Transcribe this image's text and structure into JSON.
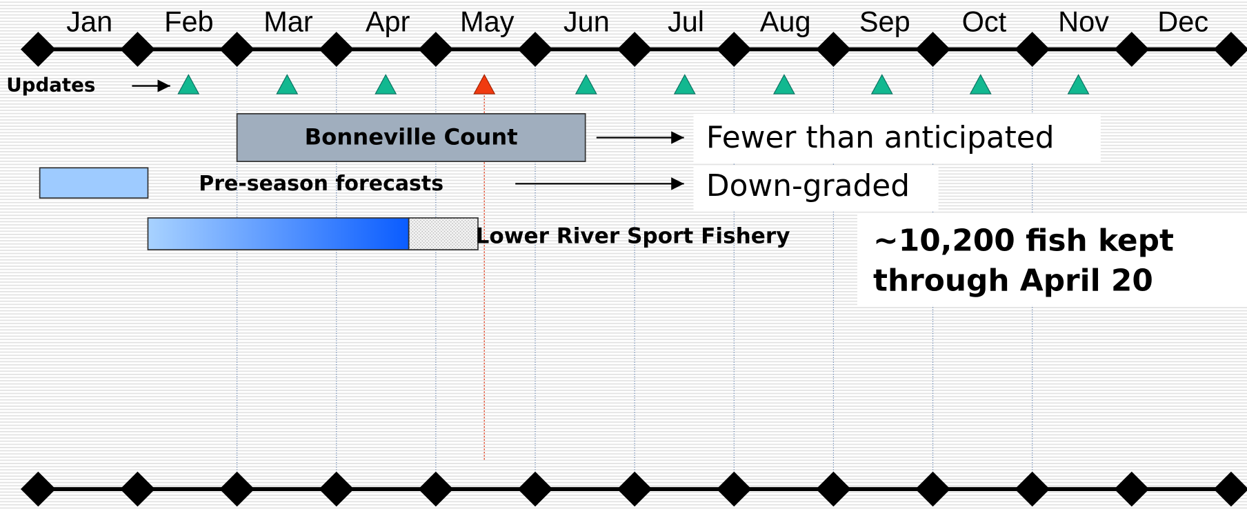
{
  "timeline": {
    "months": [
      "Jan",
      "Feb",
      "Mar",
      "Apr",
      "May",
      "Jun",
      "Jul",
      "Aug",
      "Sep",
      "Oct",
      "Nov",
      "Dec"
    ],
    "updates_label": "Updates",
    "bars": [
      {
        "label": "Bonneville Count",
        "note": "Fewer than anticipated"
      },
      {
        "label": "Pre-season forecasts",
        "note": "Down-graded"
      },
      {
        "label": "Lower River Sport Fishery",
        "note_lines": [
          "~10,200 fish kept",
          "through April 20"
        ]
      }
    ]
  }
}
